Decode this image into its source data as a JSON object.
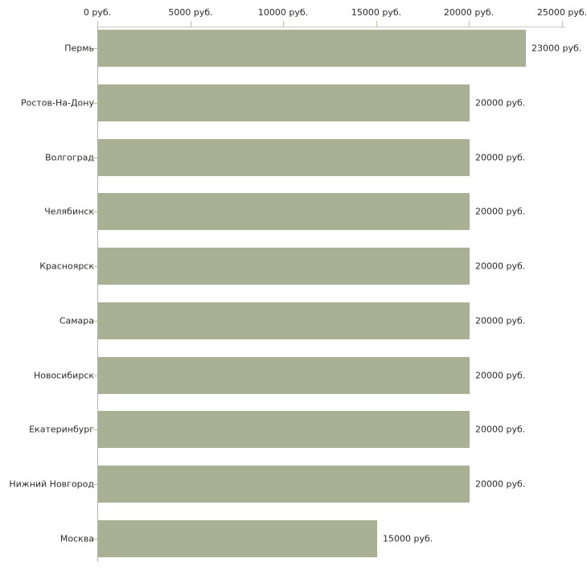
{
  "chart_data": {
    "type": "bar",
    "orientation": "horizontal",
    "title": "",
    "xlabel": "",
    "ylabel": "",
    "unit": "руб.",
    "categories": [
      "Пермь",
      "Ростов-На-Дону",
      "Волгоград",
      "Челябинск",
      "Красноярск",
      "Самара",
      "Новосибирск",
      "Екатеринбург",
      "Нижний Новгород",
      "Москва"
    ],
    "values": [
      23000,
      20000,
      20000,
      20000,
      20000,
      20000,
      20000,
      20000,
      20000,
      15000
    ],
    "value_labels": [
      "23000 руб.",
      "20000 руб.",
      "20000 руб.",
      "20000 руб.",
      "20000 руб.",
      "20000 руб.",
      "20000 руб.",
      "20000 руб.",
      "20000 руб.",
      "15000 руб."
    ],
    "xlim": [
      0,
      25000
    ],
    "x_ticks": [
      {
        "value": 0,
        "label": "0 руб."
      },
      {
        "value": 5000,
        "label": "5000 руб."
      },
      {
        "value": 10000,
        "label": "10000 руб."
      },
      {
        "value": 15000,
        "label": "15000 руб."
      },
      {
        "value": 20000,
        "label": "20000 руб."
      },
      {
        "value": 25000,
        "label": "25000 руб."
      }
    ],
    "axis_position": "top",
    "grid": false,
    "legend": false,
    "colors": {
      "bar_fill": "#aab094",
      "x_axis_line": "#c9c9c9",
      "y_axis_line": "#b3b3b3",
      "tick_mark": "#c2c29a",
      "text": "#2b2b2b",
      "background": "#ffffff"
    }
  }
}
